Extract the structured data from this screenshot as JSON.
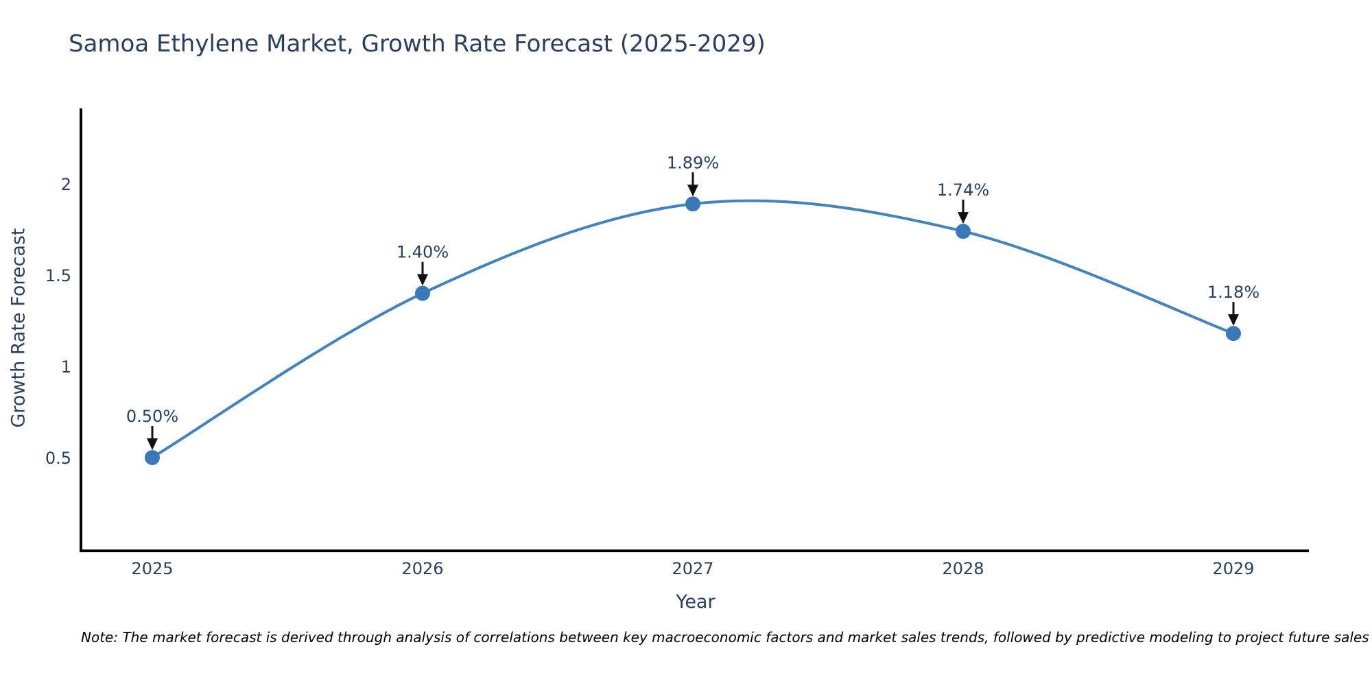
{
  "title": "Samoa Ethylene Market, Growth Rate Forecast (2025-2029)",
  "note": "Note: The market forecast is derived through analysis of correlations between key macroeconomic factors and market sales trends, followed by predictive modeling to project future sales",
  "chart_data": {
    "type": "line",
    "title": "Samoa Ethylene Market, Growth Rate Forecast (2025-2029)",
    "xlabel": "Year",
    "ylabel": "Growth Rate Forecast",
    "categories": [
      "2025",
      "2026",
      "2027",
      "2028",
      "2029"
    ],
    "series": [
      {
        "name": "Growth Rate Forecast",
        "values": [
          0.5,
          1.4,
          1.89,
          1.74,
          1.18
        ],
        "point_labels": [
          "0.50%",
          "1.40%",
          "1.89%",
          "1.74%",
          "1.18%"
        ]
      }
    ],
    "ytick_labels": [
      "0.5",
      "1",
      "1.5",
      "2"
    ],
    "ytick_values": [
      0.5,
      1,
      1.5,
      2
    ],
    "ylim": [
      0,
      2.4
    ],
    "line_shape": "spline",
    "grid": false,
    "legend": false,
    "annotations_have_arrows": true
  },
  "colors": {
    "line": "#4183bd",
    "marker": "#3a79b8",
    "axis": "#000000",
    "arrow": "#111111",
    "text": "#2a3f5f",
    "note_text": "#000000",
    "background": "#ffffff"
  }
}
